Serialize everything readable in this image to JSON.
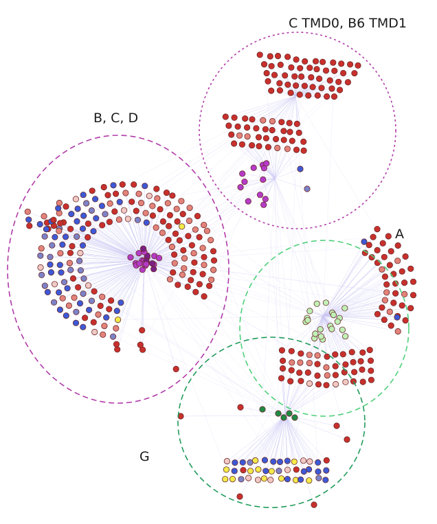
{
  "labels": {
    "top_right": "C TMD0,  B6 TMD1",
    "bcd": "B, C, D",
    "a": "A",
    "g": "G"
  },
  "colors": {
    "edge": "#c9c6f2",
    "node_red": "#c9302c",
    "node_salmon": "#e3837a",
    "node_pink": "#f1c9c4",
    "node_blue": "#3d59d6",
    "node_slate": "#7c82c7",
    "node_yellow": "#f2ea4a",
    "node_purple": "#b43cc7",
    "node_lightgreen": "#bff0b5",
    "node_darkgreen": "#1f8a45",
    "circle_bcd": "#b03aa8",
    "circle_top": "#b13aa8",
    "circle_a": "#4fd07a",
    "circle_g": "#1f9a5a"
  }
}
